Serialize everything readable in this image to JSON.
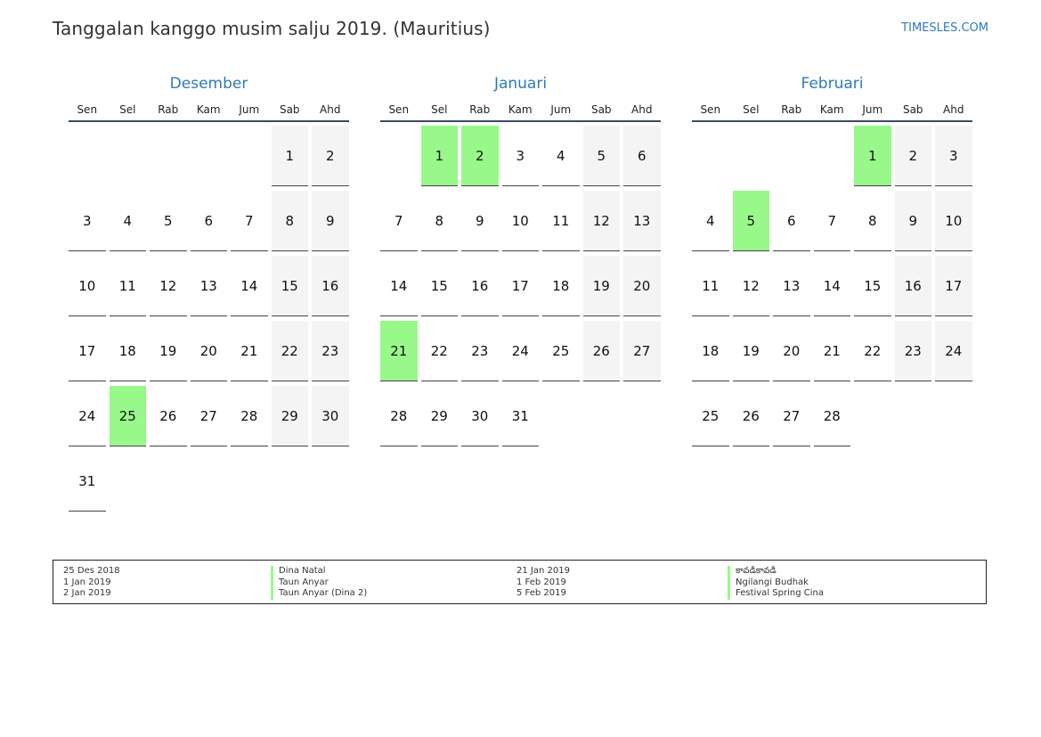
{
  "header": {
    "title": "Tanggalan kanggo musim salju 2019. (Mauritius)",
    "brand": "TIMESLES.COM"
  },
  "colors": {
    "accent": "#2f7ab9",
    "holiday": "#98f98a",
    "weekend": "#f4f4f4"
  },
  "weekday_labels": [
    "Sen",
    "Sel",
    "Rab",
    "Kam",
    "Jum",
    "Sab",
    "Ahd"
  ],
  "months": [
    {
      "name": "Desember",
      "weeks": [
        [
          "",
          "",
          "",
          "",
          "",
          "1",
          "2"
        ],
        [
          "3",
          "4",
          "5",
          "6",
          "7",
          "8",
          "9"
        ],
        [
          "10",
          "11",
          "12",
          "13",
          "14",
          "15",
          "16"
        ],
        [
          "17",
          "18",
          "19",
          "20",
          "21",
          "22",
          "23"
        ],
        [
          "24",
          "25",
          "26",
          "27",
          "28",
          "29",
          "30"
        ],
        [
          "31",
          "",
          "",
          "",
          "",
          "",
          ""
        ]
      ],
      "holidays": [
        "25"
      ]
    },
    {
      "name": "Januari",
      "weeks": [
        [
          "",
          "1",
          "2",
          "3",
          "4",
          "5",
          "6"
        ],
        [
          "7",
          "8",
          "9",
          "10",
          "11",
          "12",
          "13"
        ],
        [
          "14",
          "15",
          "16",
          "17",
          "18",
          "19",
          "20"
        ],
        [
          "21",
          "22",
          "23",
          "24",
          "25",
          "26",
          "27"
        ],
        [
          "28",
          "29",
          "30",
          "31",
          "",
          "",
          ""
        ]
      ],
      "holidays": [
        "1",
        "2",
        "21"
      ]
    },
    {
      "name": "Februari",
      "weeks": [
        [
          "",
          "",
          "",
          "",
          "1",
          "2",
          "3"
        ],
        [
          "4",
          "5",
          "6",
          "7",
          "8",
          "9",
          "10"
        ],
        [
          "11",
          "12",
          "13",
          "14",
          "15",
          "16",
          "17"
        ],
        [
          "18",
          "19",
          "20",
          "21",
          "22",
          "23",
          "24"
        ],
        [
          "25",
          "26",
          "27",
          "28",
          "",
          "",
          ""
        ]
      ],
      "holidays": [
        "1",
        "5"
      ]
    }
  ],
  "legend": {
    "left": [
      {
        "date": "25 Des 2018",
        "name": "Dina Natal"
      },
      {
        "date": "1 Jan 2019",
        "name": "Taun Anyar"
      },
      {
        "date": "2 Jan 2019",
        "name": "Taun Anyar (Dina 2)"
      }
    ],
    "right": [
      {
        "date": "21 Jan 2019",
        "name": "కావడికావడి"
      },
      {
        "date": "1 Feb 2019",
        "name": "Ngilangi Budhak"
      },
      {
        "date": "5 Feb 2019",
        "name": "Festival Spring Cina"
      }
    ]
  }
}
